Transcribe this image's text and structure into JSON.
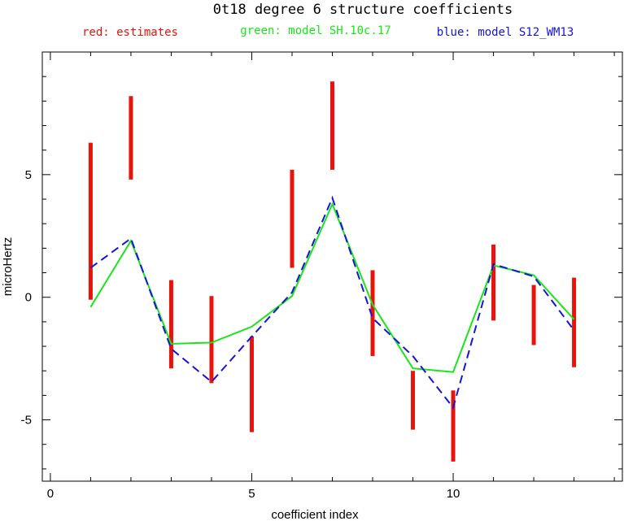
{
  "chart_data": {
    "type": "line",
    "title": "0t18 degree 6 structure coefficients",
    "xlabel": "coefficient index",
    "ylabel": "microHertz",
    "xlim": [
      -0.2,
      14.2
    ],
    "ylim": [
      -7.5,
      10.0
    ],
    "x_ticks": [
      0,
      5,
      10
    ],
    "x_tick_labels": [
      "0",
      "5",
      "10"
    ],
    "y_ticks": [
      -5,
      0,
      5
    ],
    "y_tick_labels": [
      "-5",
      "0",
      "5"
    ],
    "legend": {
      "placement": "top",
      "entries": [
        {
          "label": "red: estimates",
          "color": "#e8140c"
        },
        {
          "label": "green: model SH.10c.17",
          "color": "#19e619"
        },
        {
          "label": "blue: model S12_WM13",
          "color": "#1414dc"
        }
      ]
    },
    "x": [
      1,
      2,
      3,
      4,
      5,
      6,
      7,
      8,
      9,
      10,
      11,
      12,
      13
    ],
    "estimates": {
      "color": "#e8140c",
      "ranges": [
        [
          -0.1,
          6.3
        ],
        [
          4.8,
          8.2
        ],
        [
          -2.9,
          0.7
        ],
        [
          -3.5,
          0.05
        ],
        [
          -5.5,
          -1.6
        ],
        [
          1.2,
          5.2
        ],
        [
          5.2,
          8.8
        ],
        [
          -2.4,
          1.1
        ],
        [
          -5.4,
          -3.0
        ],
        [
          -6.7,
          -3.8
        ],
        [
          -0.95,
          2.15
        ],
        [
          -1.95,
          0.5
        ],
        [
          -2.85,
          0.8
        ]
      ]
    },
    "series": [
      {
        "name": "model SH.10c.17",
        "color": "#19e619",
        "style": "solid",
        "values": [
          -0.4,
          2.3,
          -1.9,
          -1.85,
          -1.2,
          0.05,
          3.8,
          -0.3,
          -2.9,
          -3.05,
          1.3,
          0.9,
          -0.9
        ]
      },
      {
        "name": "model S12_WM13",
        "color": "#1414dc",
        "style": "dashed",
        "values": [
          1.2,
          2.4,
          -2.1,
          -3.45,
          -1.6,
          0.2,
          4.05,
          -0.85,
          -2.4,
          -4.5,
          1.35,
          0.85,
          -1.35
        ]
      }
    ],
    "grid": false
  }
}
